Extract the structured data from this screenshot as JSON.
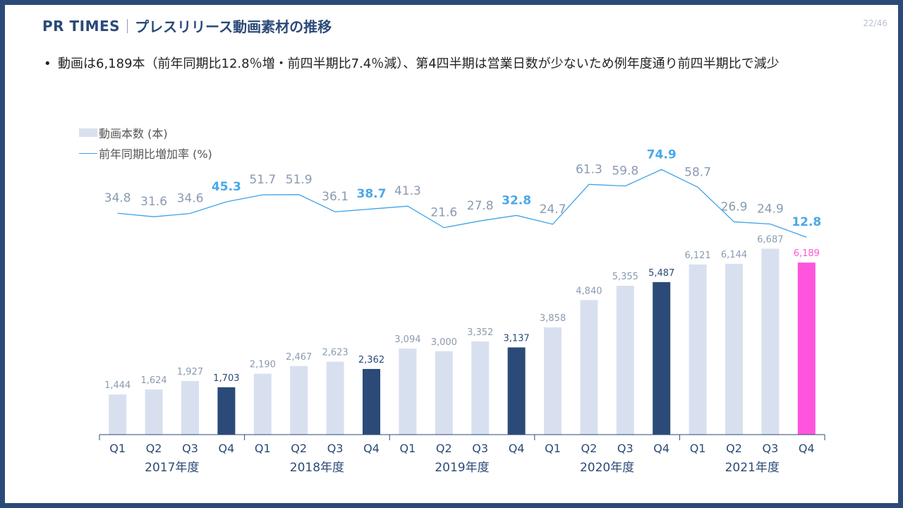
{
  "header": {
    "brand": "PR TIMES",
    "title": "プレスリリース動画素材の推移",
    "page": "22/46"
  },
  "bullet": {
    "text": "動画は6,189本（前年同期比12.8％増・前四半期比7.4％減）、第4四半期は営業日数が少ないため例年度通り前四半期比で減少"
  },
  "colors": {
    "frame": "#2b4a78",
    "bar_default": "#d8e0f0",
    "bar_q4": "#2b4a78",
    "bar_highlight": "#ff55dd",
    "line": "#3fa3ea",
    "label_gray": "#8a9bb0",
    "label_blue": "#4aa8ea",
    "label_pink": "#ff55dd"
  },
  "chart_data": {
    "type": "bar+line",
    "legend": [
      {
        "name": "動画本数 (本)",
        "kind": "bar"
      },
      {
        "name": "前年同期比増加率 (%)",
        "kind": "line"
      }
    ],
    "categories": [
      "Q1",
      "Q2",
      "Q3",
      "Q4",
      "Q1",
      "Q2",
      "Q3",
      "Q4",
      "Q1",
      "Q2",
      "Q3",
      "Q4",
      "Q1",
      "Q2",
      "Q3",
      "Q4",
      "Q1",
      "Q2",
      "Q3",
      "Q4"
    ],
    "groups": [
      "2017年度",
      "2018年度",
      "2019年度",
      "2020年度",
      "2021年度"
    ],
    "bars": {
      "name": "動画本数 (本)",
      "values": [
        1444,
        1624,
        1927,
        1703,
        2190,
        2467,
        2623,
        2362,
        3094,
        3000,
        3352,
        3137,
        3858,
        4840,
        5355,
        5487,
        6121,
        6144,
        6687,
        6189
      ],
      "labels": [
        "1,444",
        "1,624",
        "1,927",
        "1,703",
        "2,190",
        "2,467",
        "2,623",
        "2,362",
        "3,094",
        "3,000",
        "3,352",
        "3,137",
        "3,858",
        "4,840",
        "5,355",
        "5,487",
        "6,121",
        "6,144",
        "6,687",
        "6,189"
      ]
    },
    "line": {
      "name": "前年同期比増加率 (%)",
      "values": [
        34.8,
        31.6,
        34.6,
        45.3,
        51.7,
        51.9,
        36.1,
        38.7,
        41.3,
        21.6,
        27.8,
        32.8,
        24.7,
        61.3,
        59.8,
        74.9,
        58.7,
        26.9,
        24.9,
        12.8
      ],
      "labels": [
        "34.8",
        "31.6",
        "34.6",
        "45.3",
        "51.7",
        "51.9",
        "36.1",
        "38.7",
        "41.3",
        "21.6",
        "27.8",
        "32.8",
        "24.7",
        "61.3",
        "59.8",
        "74.9",
        "58.7",
        "26.9",
        "24.9",
        "12.8"
      ]
    },
    "highlight_index": 19
  }
}
